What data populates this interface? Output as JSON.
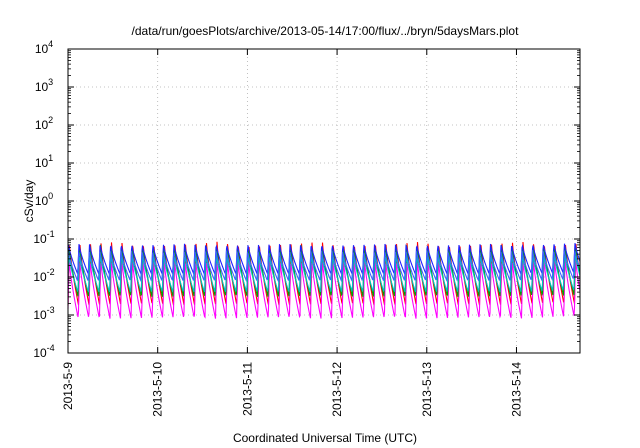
{
  "chart_data": {
    "type": "line",
    "title": "/data/run/goesPlots/archive/2013-05-14/17:00/flux/../bryn/5daysMars.plot",
    "xlabel": "Coordinated Universal Time (UTC)",
    "ylabel": "cSv/day",
    "yscale": "log",
    "ylim": [
      0.0001,
      10000
    ],
    "xlim": [
      "2013-05-09T00:00",
      "2013-05-14T17:00"
    ],
    "x_ticks": [
      "2013-5-9",
      "2013-5-10",
      "2013-5-11",
      "2013-5-12",
      "2013-5-13",
      "2013-5-14"
    ],
    "y_ticks": [
      {
        "base": "10",
        "exp": "-4"
      },
      {
        "base": "10",
        "exp": "-3"
      },
      {
        "base": "10",
        "exp": "-2"
      },
      {
        "base": "10",
        "exp": "-1"
      },
      {
        "base": "10",
        "exp": "0"
      },
      {
        "base": "10",
        "exp": "1"
      },
      {
        "base": "10",
        "exp": "2"
      },
      {
        "base": "10",
        "exp": "3"
      },
      {
        "base": "10",
        "exp": "4"
      }
    ],
    "grid": true,
    "pattern": {
      "description_of_data": "periodic sawtooth, about 8.5 cycles per day",
      "cycles_per_day": 8.5
    },
    "series": [
      {
        "color": "#ff0000",
        "peak": 0.085,
        "trough": 0.0018
      },
      {
        "color": "#ff00ff",
        "peak": 0.03,
        "trough": 0.0008
      },
      {
        "color": "#00a000",
        "peak": 0.07,
        "trough": 0.003
      },
      {
        "color": "#00c0c0",
        "peak": 0.04,
        "trough": 0.004
      },
      {
        "color": "#2020ff",
        "peak": 0.075,
        "trough": 0.012
      },
      {
        "color": "#3d60ff",
        "peak": 0.05,
        "trough": 0.008
      }
    ]
  }
}
